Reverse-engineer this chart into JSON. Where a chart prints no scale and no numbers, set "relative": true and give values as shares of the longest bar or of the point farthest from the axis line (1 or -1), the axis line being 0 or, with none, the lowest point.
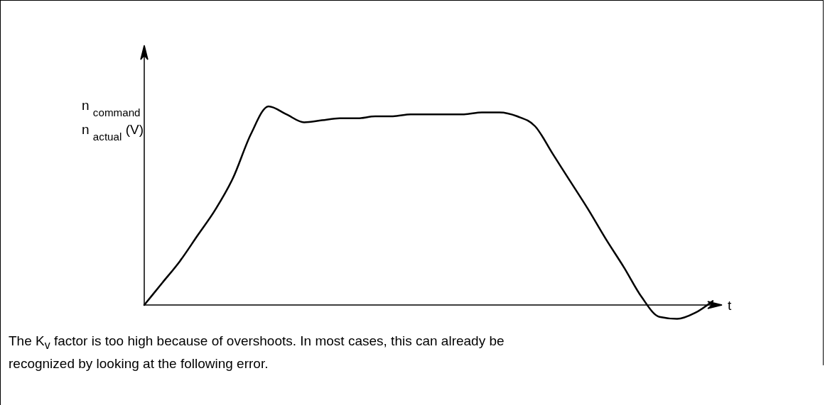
{
  "chart_data": {
    "type": "line",
    "relative": true,
    "color": "#000000",
    "ylabel": "n $_{command}$\nn $_{actual}$ (V)",
    "xlabel": "t",
    "categories": [
      null,
      null,
      null,
      null,
      null,
      null,
      null,
      null,
      null,
      null,
      null,
      null,
      null,
      null,
      null,
      null,
      null,
      null,
      null,
      null,
      null,
      null,
      null,
      null,
      null,
      null,
      null,
      null,
      null,
      null,
      null,
      null,
      null
    ],
    "values": [
      0,
      0.11,
      0.22,
      0.35,
      0.48,
      0.64,
      0.86,
      1,
      0.96,
      0.92,
      0.93,
      0.94,
      0.94,
      0.95,
      0.95,
      0.96,
      0.96,
      0.96,
      0.96,
      0.97,
      0.97,
      0.95,
      0.9,
      0.76,
      0.62,
      0.48,
      0.33,
      0.19,
      0.04,
      -0.06,
      -0.07,
      -0.04,
      0.02
    ],
    "annotations": [
      "The K$_{v}$ factor is too high because of overshoots. In most cases, this can already be recognized by looking at the following error."
    ]
  }
}
